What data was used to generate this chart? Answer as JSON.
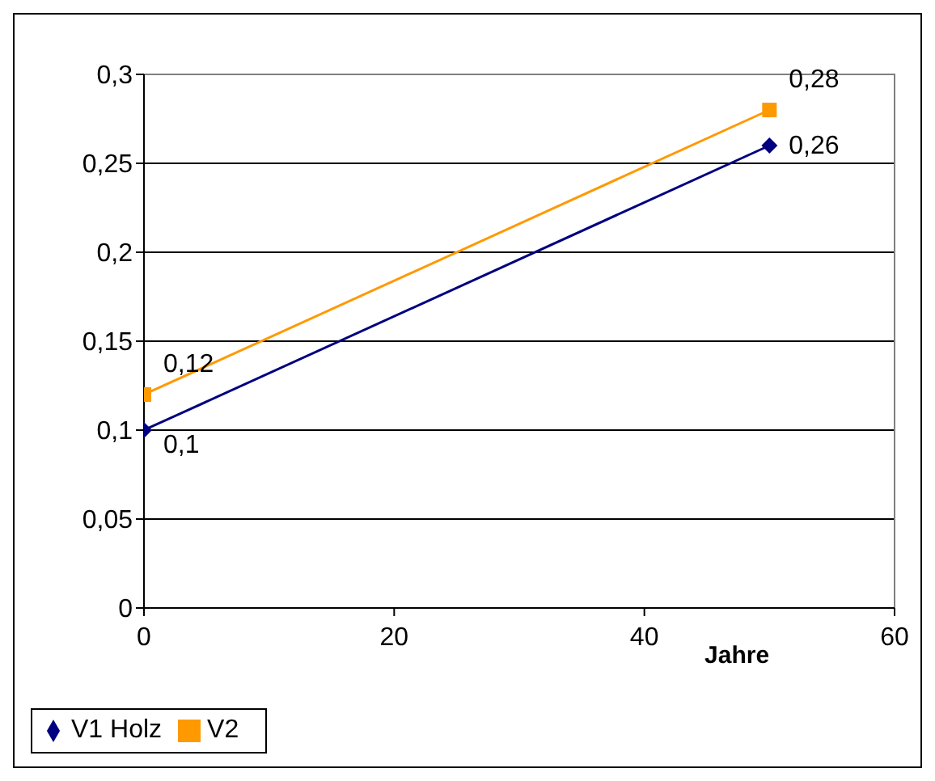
{
  "chart_data": {
    "type": "line",
    "xlabel": "Jahre",
    "x": [
      0,
      50
    ],
    "series": [
      {
        "name": "V1 Holz",
        "color": "#000080",
        "values": [
          0.1,
          0.26
        ],
        "value_labels": [
          "0,1",
          "0,26"
        ],
        "marker": "diamond"
      },
      {
        "name": "V2",
        "color": "#ff9900",
        "values": [
          0.12,
          0.28
        ],
        "value_labels": [
          "0,12",
          "0,28"
        ],
        "marker": "square"
      }
    ],
    "xlim": [
      0,
      60
    ],
    "xticks": [
      0,
      20,
      40,
      60
    ],
    "ylim": [
      0,
      0.3
    ],
    "yticks": [
      {
        "value": 0,
        "label": "0"
      },
      {
        "value": 0.05,
        "label": "0,05"
      },
      {
        "value": 0.1,
        "label": "0,1"
      },
      {
        "value": 0.15,
        "label": "0,15"
      },
      {
        "value": 0.2,
        "label": "0,2"
      },
      {
        "value": 0.25,
        "label": "0,25"
      },
      {
        "value": 0.3,
        "label": "0,3"
      }
    ],
    "grid": "y",
    "legend": "bottom left",
    "line_style": "solid"
  }
}
